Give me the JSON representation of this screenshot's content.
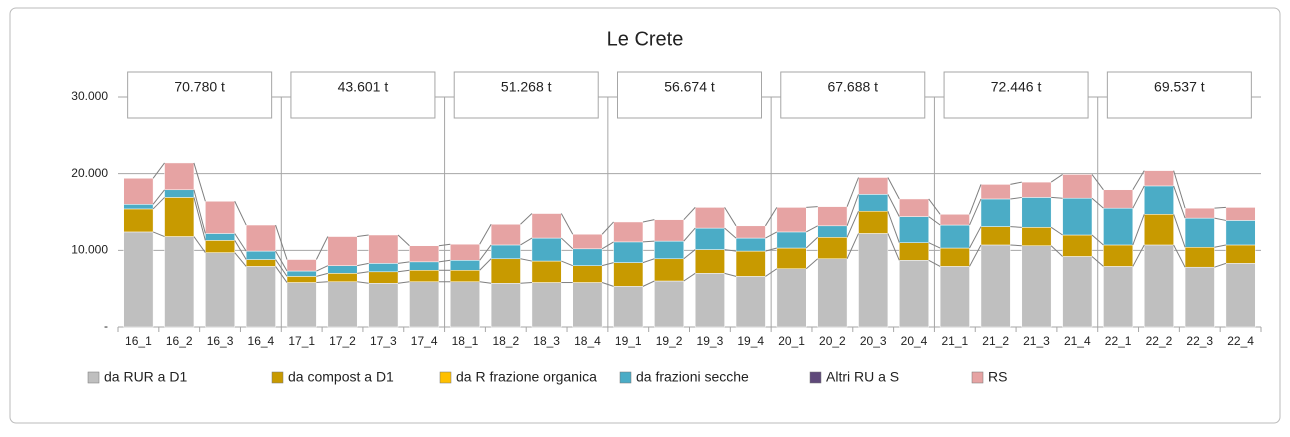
{
  "chart_data": {
    "type": "bar",
    "stacked": true,
    "title": "Le Crete",
    "categories": [
      "16_1",
      "16_2",
      "16_3",
      "16_4",
      "17_1",
      "17_2",
      "17_3",
      "17_4",
      "18_1",
      "18_2",
      "18_3",
      "18_4",
      "19_1",
      "19_2",
      "19_3",
      "19_4",
      "20_1",
      "20_2",
      "20_3",
      "20_4",
      "21_1",
      "21_2",
      "21_3",
      "21_4",
      "22_1",
      "22_2",
      "22_3",
      "22_4"
    ],
    "series": [
      {
        "name": "da RUR a D1",
        "color": "#bfbfbf",
        "values": [
          12400,
          11800,
          9700,
          7900,
          5800,
          5900,
          5700,
          5900,
          5900,
          5700,
          5800,
          5800,
          5300,
          6000,
          7000,
          6600,
          7600,
          8900,
          12200,
          8700,
          7900,
          10700,
          10600,
          9200,
          7900,
          10700,
          7800,
          8300
        ]
      },
      {
        "name": "da compost a D1",
        "color": "#c89a00",
        "values": [
          3000,
          5100,
          1600,
          900,
          800,
          1100,
          1500,
          1500,
          1500,
          3200,
          2800,
          2200,
          3100,
          2900,
          3100,
          3300,
          2700,
          2800,
          2900,
          2300,
          2400,
          2400,
          2400,
          2800,
          2800,
          4000,
          2600,
          2400
        ]
      },
      {
        "name": "da R frazione organica",
        "color": "#ffc000",
        "values": [
          0,
          0,
          0,
          0,
          0,
          0,
          0,
          0,
          0,
          0,
          0,
          0,
          0,
          0,
          0,
          0,
          0,
          0,
          0,
          0,
          0,
          0,
          0,
          0,
          0,
          0,
          0,
          0
        ]
      },
      {
        "name": "da frazioni secche",
        "color": "#4bacc6",
        "values": [
          600,
          1000,
          900,
          1100,
          700,
          1000,
          1100,
          1100,
          1300,
          1800,
          3000,
          2200,
          2700,
          2300,
          2800,
          1700,
          2100,
          1500,
          2200,
          3400,
          3000,
          3600,
          3900,
          4800,
          4800,
          3700,
          3800,
          3200
        ]
      },
      {
        "name": "Altri RU a S",
        "color": "#5f497a",
        "values": [
          0,
          0,
          0,
          0,
          0,
          0,
          0,
          0,
          0,
          0,
          0,
          0,
          0,
          0,
          0,
          0,
          0,
          0,
          0,
          0,
          0,
          0,
          0,
          0,
          0,
          0,
          0,
          0
        ]
      },
      {
        "name": "RS",
        "color": "#e6a3a3",
        "values": [
          3400,
          3500,
          4200,
          3400,
          1500,
          3800,
          3700,
          2100,
          2100,
          2700,
          3200,
          1900,
          2600,
          2800,
          2700,
          1600,
          3200,
          2500,
          2200,
          2300,
          1400,
          1900,
          2000,
          3100,
          2400,
          2000,
          1300,
          1700
        ]
      }
    ],
    "annotations": [
      "70.780 t",
      "43.601 t",
      "51.268 t",
      "56.674 t",
      "67.688 t",
      "72.446 t",
      "69.537 t"
    ],
    "ylim": [
      0,
      30000
    ],
    "yticks": [
      {
        "value": 0,
        "label": "-"
      },
      {
        "value": 10000,
        "label": "10.000"
      },
      {
        "value": 20000,
        "label": "20.000"
      },
      {
        "value": 30000,
        "label": "30.000"
      }
    ],
    "grid": true,
    "legend": "bottom"
  }
}
